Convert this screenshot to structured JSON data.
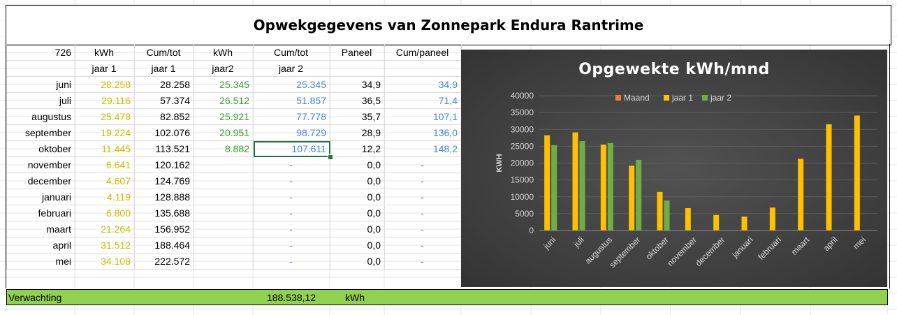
{
  "title": "Opwekgegevens van Zonnepark Endura Rantrime",
  "header_row1": [
    "726",
    "kWh",
    "Cum/tot",
    "kWh",
    "Cum/tot",
    "Paneel",
    "Cum/paneel"
  ],
  "header_row2": [
    "",
    "jaar 1",
    "jaar 1",
    "jaar2",
    "jaar 2",
    "",
    ""
  ],
  "rows": [
    {
      "month": "juni",
      "kwh1": "28.258",
      "cum1": "28.258",
      "kwh2": "25.345",
      "cum2": "25.345",
      "paneel": "34,9",
      "cumpaneel": "34,9"
    },
    {
      "month": "juli",
      "kwh1": "29.116",
      "cum1": "57.374",
      "kwh2": "26.512",
      "cum2": "51.857",
      "paneel": "36,5",
      "cumpaneel": "71,4"
    },
    {
      "month": "augustus",
      "kwh1": "25.478",
      "cum1": "82.852",
      "kwh2": "25.921",
      "cum2": "77.778",
      "paneel": "35,7",
      "cumpaneel": "107,1"
    },
    {
      "month": "september",
      "kwh1": "19.224",
      "cum1": "102.076",
      "kwh2": "20.951",
      "cum2": "98.729",
      "paneel": "28,9",
      "cumpaneel": "136,0"
    },
    {
      "month": "oktober",
      "kwh1": "11.445",
      "cum1": "113.521",
      "kwh2": "8.882",
      "cum2": "107.611",
      "paneel": "12,2",
      "cumpaneel": "148,2"
    },
    {
      "month": "november",
      "kwh1": "6.641",
      "cum1": "120.162",
      "kwh2": "",
      "cum2": "-",
      "paneel": "0,0",
      "cumpaneel": "-"
    },
    {
      "month": "december",
      "kwh1": "4.607",
      "cum1": "124.769",
      "kwh2": "",
      "cum2": "-",
      "paneel": "0,0",
      "cumpaneel": "-"
    },
    {
      "month": "januari",
      "kwh1": "4.119",
      "cum1": "128.888",
      "kwh2": "",
      "cum2": "-",
      "paneel": "0,0",
      "cumpaneel": "-"
    },
    {
      "month": "februari",
      "kwh1": "6.800",
      "cum1": "135.688",
      "kwh2": "",
      "cum2": "-",
      "paneel": "0,0",
      "cumpaneel": "-"
    },
    {
      "month": "maart",
      "kwh1": "21.264",
      "cum1": "156.952",
      "kwh2": "",
      "cum2": "-",
      "paneel": "0,0",
      "cumpaneel": "-"
    },
    {
      "month": "april",
      "kwh1": "31.512",
      "cum1": "188.464",
      "kwh2": "",
      "cum2": "-",
      "paneel": "0,0",
      "cumpaneel": "-"
    },
    {
      "month": "mei",
      "kwh1": "34.108",
      "cum1": "222.572",
      "kwh2": "",
      "cum2": "-",
      "paneel": "0,0",
      "cumpaneel": "-"
    }
  ],
  "footer": {
    "label": "Verwachting",
    "value": "188.538,12",
    "unit": "kWh"
  },
  "colors": {
    "maand": "#ed7d31",
    "jaar1": "#ffc000",
    "jaar2": "#70ad47",
    "footer_bg": "#92d050",
    "chart_bg": "#404040"
  },
  "chart_data": {
    "type": "bar",
    "title": "Opgewekte kWh/mnd",
    "ylabel": "KWH",
    "xlabel": "",
    "ylim": [
      0,
      40000
    ],
    "yticks": [
      "0",
      "5000",
      "10000",
      "15000",
      "20000",
      "25000",
      "30000",
      "35000",
      "40000"
    ],
    "categories": [
      "juni",
      "juli",
      "augustus",
      "september",
      "oktober",
      "november",
      "december",
      "januari",
      "februari",
      "maart",
      "april",
      "mei"
    ],
    "legend_position": "top",
    "series": [
      {
        "name": "Maand",
        "values": [
          null,
          null,
          null,
          null,
          null,
          null,
          null,
          null,
          null,
          null,
          null,
          null
        ]
      },
      {
        "name": "jaar 1",
        "values": [
          28258,
          29116,
          25478,
          19224,
          11445,
          6641,
          4607,
          4119,
          6800,
          21264,
          31512,
          34108
        ]
      },
      {
        "name": "jaar 2",
        "values": [
          25345,
          26512,
          25921,
          20951,
          8882,
          null,
          null,
          null,
          null,
          null,
          null,
          null
        ]
      }
    ]
  }
}
